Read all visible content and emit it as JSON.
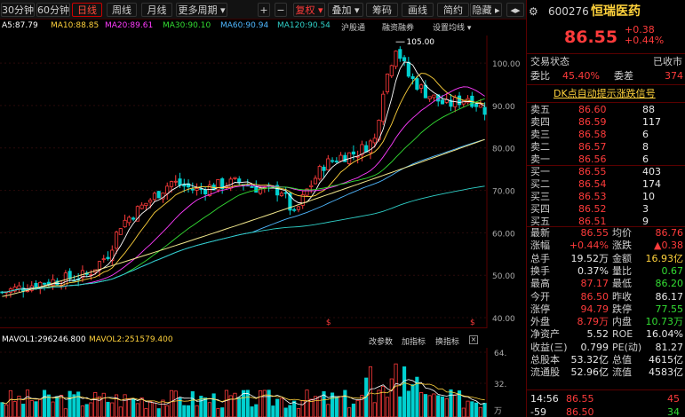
{
  "toolbar": {
    "items": [
      "30分钟",
      "60分钟",
      "日线",
      "周线",
      "月线",
      "更多周期 ▾",
      "+",
      "−",
      "复权 ▾",
      "叠加 ▾",
      "筹码",
      "画线",
      "简约",
      "隐藏 ▸"
    ],
    "active_index": 2
  },
  "indicators": {
    "ma5": "A5:87.79",
    "ma10": "MA10:88.85",
    "ma20": "MA20:89.61",
    "ma30": "MA30:90.10",
    "ma60": "MA60:90.94",
    "ma120": "MA120:90.54",
    "links": [
      "沪股通",
      "融资融券",
      "设置均线 ▾"
    ]
  },
  "colors": {
    "ma5": "#ffffff",
    "ma10": "#ffd23c",
    "ma20": "#ff3cff",
    "ma30": "#33dd33",
    "ma60": "#4fb8ff",
    "ma120": "#2fd0c8",
    "ma250": "#f0e68c",
    "up": "#ff3b3b",
    "down": "#00d0d0"
  },
  "price_axis": {
    "labels": [
      "100.00",
      "90.00",
      "80.00",
      "70.00",
      "60.00",
      "50.00",
      "40.00"
    ],
    "range": [
      37.5,
      106.5
    ]
  },
  "high_mark": "105.00",
  "volume": {
    "vol1": "MAVOL1:296246.800",
    "vol2": "MAVOL2:251579.400",
    "buttons": [
      "改参数",
      "加指标",
      "换指标"
    ],
    "axis_labels": [
      "64.",
      "32."
    ],
    "axis_unit": "万"
  },
  "stock": {
    "code": "600276",
    "name": "恒瑞医药",
    "price": "86.55",
    "change": "+0.38",
    "change_pct": "+0.44%"
  },
  "status": {
    "trading_label": "交易状态",
    "trading_value": "已收市",
    "ratio_label": "委比",
    "ratio_value": "45.40%",
    "diff_label": "委差",
    "diff_value": "374",
    "banner": "DK点自动提示涨跌信号"
  },
  "asks": [
    {
      "label": "卖五",
      "price": "86.60",
      "vol": "88"
    },
    {
      "label": "卖四",
      "price": "86.59",
      "vol": "117"
    },
    {
      "label": "卖三",
      "price": "86.58",
      "vol": "6"
    },
    {
      "label": "卖二",
      "price": "86.57",
      "vol": "8"
    },
    {
      "label": "卖一",
      "price": "86.56",
      "vol": "6"
    }
  ],
  "bids": [
    {
      "label": "买一",
      "price": "86.55",
      "vol": "403"
    },
    {
      "label": "买二",
      "price": "86.54",
      "vol": "174"
    },
    {
      "label": "买三",
      "price": "86.53",
      "vol": "10"
    },
    {
      "label": "买四",
      "price": "86.52",
      "vol": "3"
    },
    {
      "label": "买五",
      "price": "86.51",
      "vol": "9"
    }
  ],
  "quote": [
    {
      "l1": "最新",
      "v1": "86.55",
      "c1": "up",
      "l2": "均价",
      "v2": "86.76",
      "c2": "up"
    },
    {
      "l1": "涨幅",
      "v1": "+0.44%",
      "c1": "up",
      "l2": "涨跌",
      "v2": "▲0.38",
      "c2": "up"
    },
    {
      "l1": "总手",
      "v1": "19.52万",
      "c1": "wh",
      "l2": "金额",
      "v2": "16.93亿",
      "c2": "yl"
    },
    {
      "l1": "换手",
      "v1": "0.37%",
      "c1": "wh",
      "l2": "量比",
      "v2": "0.67",
      "c2": "gr"
    },
    {
      "l1": "最高",
      "v1": "87.17",
      "c1": "up",
      "l2": "最低",
      "v2": "86.20",
      "c2": "gr"
    },
    {
      "l1": "今开",
      "v1": "86.50",
      "c1": "up",
      "l2": "昨收",
      "v2": "86.17",
      "c2": "wh"
    },
    {
      "l1": "涨停",
      "v1": "94.79",
      "c1": "up",
      "l2": "跌停",
      "v2": "77.55",
      "c2": "gr"
    },
    {
      "l1": "外盘",
      "v1": "8.79万",
      "c1": "up",
      "l2": "内盘",
      "v2": "10.73万",
      "c2": "gr"
    },
    {
      "l1": "净资产",
      "v1": "5.52",
      "c1": "wh",
      "l2": "ROE",
      "v2": "16.04%",
      "c2": "wh"
    },
    {
      "l1": "收益(三)",
      "v1": "0.799",
      "c1": "wh",
      "l2": "PE(动)",
      "v2": "81.27",
      "c2": "wh"
    },
    {
      "l1": "总股本",
      "v1": "53.32亿",
      "c1": "wh",
      "l2": "总值",
      "v2": "4615亿",
      "c2": "wh"
    },
    {
      "l1": "流通股",
      "v1": "52.96亿",
      "c1": "wh",
      "l2": "流值",
      "v2": "4583亿",
      "c2": "wh"
    }
  ],
  "ticks": [
    {
      "time": "14:56",
      "price": "86.55",
      "vol": "45"
    },
    {
      "time": "-59",
      "price": "86.50",
      "vol": "34"
    }
  ]
}
